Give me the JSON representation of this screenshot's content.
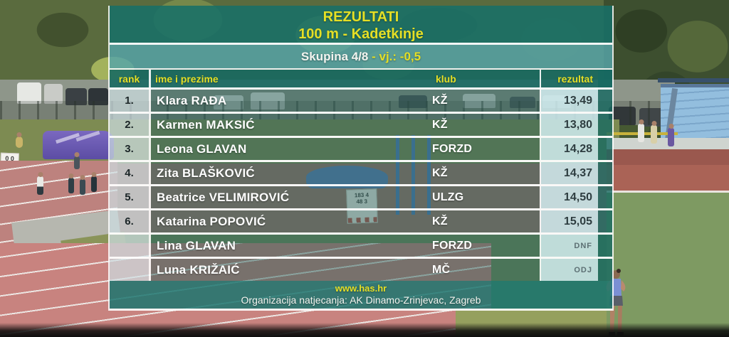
{
  "screen": {
    "title": "REZULTATI",
    "event": "100 m - Kadetkinje",
    "heat_group": "Skupina 4/8",
    "heat_wind": "- vj.: -0,5"
  },
  "results_table": {
    "headers": {
      "rank": "rank",
      "name": "ime i prezime",
      "club": "klub",
      "result": "rezultat"
    },
    "rows": [
      {
        "rank": "1.",
        "name": "Klara RAĐA",
        "club": "KŽ",
        "result": "13,49",
        "status": false
      },
      {
        "rank": "2.",
        "name": "Karmen MAKSIĆ",
        "club": "KŽ",
        "result": "13,80",
        "status": false
      },
      {
        "rank": "3.",
        "name": "Leona GLAVAN",
        "club": "FORZD",
        "result": "14,28",
        "status": false
      },
      {
        "rank": "4.",
        "name": "Zita BLAŠKOVIĆ",
        "club": "KŽ",
        "result": "14,37",
        "status": false
      },
      {
        "rank": "5.",
        "name": "Beatrice VELIMIROVIĆ",
        "club": "ULZG",
        "result": "14,50",
        "status": false
      },
      {
        "rank": "6.",
        "name": "Katarina POPOVIĆ",
        "club": "KŽ",
        "result": "15,05",
        "status": false
      },
      {
        "rank": "",
        "name": "Lina GLAVAN",
        "club": "FORZD",
        "result": "DNF",
        "status": true
      },
      {
        "rank": "",
        "name": "Luna KRIŽAIĆ",
        "club": "MČ",
        "result": "ODJ",
        "status": true
      }
    ]
  },
  "footer": {
    "website": "www.has.hr",
    "organizer": "Organizacija natjecanja: AK Dinamo-Zrinjevac, Zagreb"
  },
  "scene": {
    "field_sign": {
      "line1": "183 4",
      "line2": "48 3"
    },
    "left_sign": {
      "line1": "0 0",
      "line2": "5"
    }
  },
  "colors": {
    "panel_teal": "#187068",
    "panel_light_teal": "#55a5aa",
    "accent_yellow": "#e5df25",
    "result_cell": "#c8e4e8",
    "status_gray": "#5c6f73"
  }
}
